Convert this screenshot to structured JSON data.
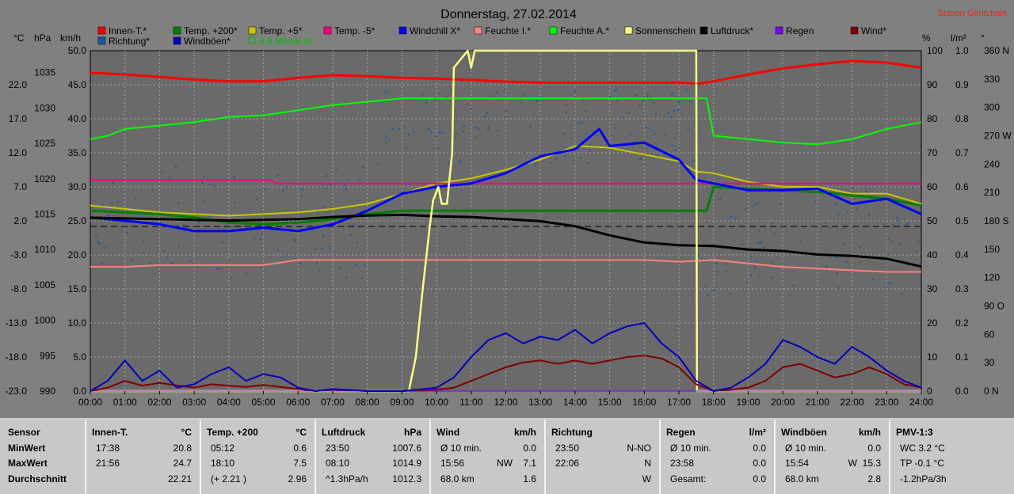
{
  "title": "Donnerstag, 27.02.2014",
  "station": "Station Göritzhain",
  "colors": {
    "background": "#808080",
    "plot_bg": "#6a6a6a",
    "innen": "#ff0000",
    "temp200": "#008000",
    "temp5": "#c8c800",
    "temp_m5": "#ff0080",
    "windchill": "#0000ff",
    "feuchte_i": "#ff8080",
    "feuchte_a": "#00ff00",
    "sonne": "#ffff80",
    "luftdruck": "#000000",
    "regen": "#8000ff",
    "wind": "#800000",
    "richtung": "#1a5aa0",
    "windboeen": "#0000c0"
  },
  "legend": [
    {
      "label": "Innen-T.*",
      "color": "#ff0000"
    },
    {
      "label": "Temp. +200*",
      "color": "#008000"
    },
    {
      "label": "Temp. +5*",
      "color": "#c8c800"
    },
    {
      "label": "Temp. -5*",
      "color": "#ff0080"
    },
    {
      "label": "Windchill X*",
      "color": "#0000ff"
    },
    {
      "label": "Feuchte I.*",
      "color": "#ff8080"
    },
    {
      "label": "Feuchte A.*",
      "color": "#00ff00"
    },
    {
      "label": "Sonnenschein",
      "color": "#ffff80"
    },
    {
      "label": "Luftdruck*",
      "color": "#000000"
    },
    {
      "label": "Regen",
      "color": "#8000ff"
    },
    {
      "label": "Wind*",
      "color": "#800000"
    },
    {
      "label": "Richtung*",
      "color": "#1a5aa0"
    },
    {
      "label": "Windböen*",
      "color": "#0000c0"
    },
    {
      "label": "0.8 Monat-Ø",
      "color": "#00c000"
    }
  ],
  "axis_units": {
    "temp": "°C",
    "hpa": "hPa",
    "kmh": "km/h",
    "pct": "%",
    "lm2": "l/m²",
    "deg": "°"
  },
  "chart_data": {
    "type": "line",
    "title": "Donnerstag, 27.02.2014",
    "x_ticks": [
      "00:00",
      "01:00",
      "02:00",
      "03:00",
      "04:00",
      "05:00",
      "06:00",
      "07:00",
      "08:00",
      "09:00",
      "10:00",
      "11:00",
      "12:00",
      "13:00",
      "14:00",
      "15:00",
      "16:00",
      "17:00",
      "18:00",
      "19:00",
      "20:00",
      "21:00",
      "22:00",
      "23:00",
      "24:00"
    ],
    "xlim": [
      0,
      24
    ],
    "axes": {
      "temp_c": {
        "ylim": [
          -23,
          27
        ],
        "ticks": [
          "22.0",
          "17.0",
          "12.0",
          "7.0",
          "2.0",
          "-3.0",
          "-8.0",
          "-13.0",
          "-18.0",
          "-23.0"
        ]
      },
      "hpa": {
        "ylim": [
          990,
          1038.1
        ],
        "ticks": [
          "1035",
          "1030",
          "1025",
          "1020",
          "1015",
          "1010",
          "1005",
          "1000",
          "995",
          "990"
        ]
      },
      "kmh": {
        "ylim": [
          0,
          50
        ],
        "ticks": [
          "50.0",
          "45.0",
          "40.0",
          "35.0",
          "30.0",
          "25.0",
          "20.0",
          "15.0",
          "10.0",
          "5.0",
          "0.0"
        ]
      },
      "pct": {
        "ylim": [
          0,
          100
        ],
        "ticks": [
          "100",
          "90",
          "80",
          "70",
          "60",
          "50",
          "40",
          "30",
          "20",
          "10",
          "0"
        ]
      },
      "lm2": {
        "ylim": [
          0,
          1.0
        ],
        "ticks": [
          "1.0",
          "0.9",
          "0.8",
          "0.7",
          "0.6",
          "0.5",
          "0.4",
          "0.3",
          "0.2",
          "0.1",
          "0.0"
        ]
      },
      "deg": {
        "ylim": [
          0,
          360
        ],
        "ticks": [
          "360 N",
          "330",
          "300",
          "270 W",
          "240",
          "210",
          "180 S",
          "150",
          "120",
          "90 O",
          "60",
          "30",
          "0 N"
        ]
      }
    },
    "series": [
      {
        "name": "Innen-T.*",
        "axis": "pct",
        "color": "#ff0000",
        "x": [
          0,
          1,
          2,
          3,
          4,
          5,
          6,
          7,
          8,
          9,
          10,
          11,
          12,
          13,
          14,
          15,
          16,
          17,
          17.6,
          18,
          19,
          20,
          21,
          22,
          23,
          24
        ],
        "y": [
          93.5,
          93,
          92.3,
          91.5,
          91,
          91,
          92,
          92.8,
          92.5,
          92,
          91.8,
          91.4,
          90.9,
          90.6,
          90.6,
          90.6,
          90.6,
          90.6,
          90.3,
          91,
          93,
          94.8,
          96,
          97,
          96.5,
          95
        ]
      },
      {
        "name": "Feuchte A.*",
        "axis": "pct",
        "color": "#00ff00",
        "x": [
          0,
          0.5,
          1,
          2,
          3,
          4,
          5,
          6,
          7,
          8,
          9,
          10,
          11,
          12,
          13,
          14,
          15,
          16,
          17,
          17.8,
          18,
          19,
          20,
          21,
          22,
          23,
          24
        ],
        "y": [
          74,
          75,
          77,
          78,
          79,
          80.5,
          81,
          82.5,
          84,
          85,
          86,
          86,
          86,
          86,
          86,
          86,
          86,
          86,
          86,
          86,
          75,
          74,
          73,
          72.5,
          74,
          77,
          79
        ]
      },
      {
        "name": "Temp. +5*",
        "axis": "pct",
        "color": "#c8c800",
        "x": [
          0,
          1,
          2,
          3,
          4,
          5,
          6,
          7,
          8,
          9,
          10,
          11,
          12,
          13,
          14,
          15,
          16,
          17,
          17.5,
          18,
          19,
          20,
          21,
          22,
          23,
          24
        ],
        "y": [
          54.5,
          53.5,
          52.5,
          52,
          51.5,
          52,
          52.5,
          53.5,
          55,
          58,
          61,
          62.5,
          65,
          68,
          72,
          71.5,
          69.5,
          67.5,
          64.5,
          64,
          61.5,
          60,
          60,
          58,
          58,
          55
        ]
      },
      {
        "name": "Temp. +200*",
        "axis": "pct",
        "color": "#008000",
        "x": [
          0,
          1,
          2,
          3,
          4,
          5,
          6,
          7,
          8,
          9,
          10,
          11,
          12,
          13,
          14,
          15,
          16,
          17,
          17.8,
          18,
          19,
          20,
          21,
          22,
          23,
          24
        ],
        "y": [
          53,
          52.5,
          52,
          51,
          49.5,
          49,
          49.5,
          50.5,
          52,
          53,
          53,
          53,
          53,
          53,
          53,
          53,
          53,
          53,
          53,
          60,
          59.5,
          59,
          58.5,
          57.5,
          56.5,
          54.5
        ]
      },
      {
        "name": "Temp. -5*",
        "axis": "pct",
        "color": "#ff0080",
        "x": [
          0,
          5.2,
          5.4,
          24
        ],
        "y": [
          62,
          62,
          61,
          61
        ]
      },
      {
        "name": "Windchill X*",
        "axis": "pct",
        "color": "#0000ff",
        "x": [
          0,
          1,
          2,
          3,
          4,
          5,
          6,
          7,
          8,
          9,
          10,
          11,
          12,
          13,
          14,
          14.7,
          15,
          16,
          17,
          17.5,
          18,
          19,
          20,
          21,
          22,
          23,
          24
        ],
        "y": [
          51,
          50,
          49,
          47,
          47,
          48,
          47,
          49,
          53,
          58,
          60,
          61,
          64,
          69,
          71,
          77,
          72,
          73,
          68,
          62,
          61,
          59,
          59,
          59.5,
          55,
          56.5,
          52
        ]
      },
      {
        "name": "Luftdruck*",
        "axis": "hpa",
        "color": "#000000",
        "x": [
          0,
          1,
          2,
          3,
          4,
          5,
          6,
          7,
          8,
          9,
          10,
          11,
          12,
          13,
          14,
          15,
          16,
          17,
          18,
          19,
          20,
          21,
          22,
          23,
          24
        ],
        "y": [
          1014.5,
          1014.4,
          1014.3,
          1014.2,
          1014.1,
          1014.2,
          1014.3,
          1014.6,
          1014.8,
          1014.9,
          1014.7,
          1014.6,
          1014.3,
          1014.0,
          1013.3,
          1012.0,
          1011.0,
          1010.6,
          1010.5,
          1010.0,
          1009.8,
          1009.3,
          1009.1,
          1008.7,
          1007.6
        ]
      },
      {
        "name": "Feuchte I.*",
        "axis": "pct",
        "color": "#ff8080",
        "x": [
          0,
          1,
          2,
          3,
          4,
          5,
          6,
          7,
          8,
          9,
          10,
          11,
          12,
          13,
          14,
          15,
          16,
          17,
          18,
          19,
          20,
          21,
          22,
          23,
          24
        ],
        "y": [
          36.5,
          36.5,
          37,
          37,
          37,
          37,
          38.5,
          38.5,
          38.5,
          38.5,
          38.5,
          38.5,
          38.5,
          38.5,
          38.5,
          38.5,
          38.5,
          38,
          38.5,
          37.5,
          36.5,
          36,
          35.5,
          35,
          35
        ]
      },
      {
        "name": "Sonnenschein",
        "axis": "pct",
        "color": "#ffff80",
        "x": [
          0,
          9.2,
          9.4,
          9.6,
          9.8,
          9.9,
          10.05,
          10.15,
          10.3,
          10.45,
          10.5,
          10.9,
          11.0,
          11.1,
          11.2,
          12,
          13,
          14,
          15,
          16,
          17,
          17.5,
          17.52,
          18,
          24
        ],
        "y": [
          0,
          0,
          10,
          30,
          48,
          56,
          60,
          55,
          55,
          70,
          95,
          100,
          95,
          100,
          100,
          100,
          100,
          100,
          100,
          100,
          100,
          100,
          0,
          0,
          0
        ]
      },
      {
        "name": "Regen",
        "axis": "lm2",
        "color": "#8000ff",
        "x": [
          0,
          24
        ],
        "y": [
          0,
          0
        ]
      },
      {
        "name": "Wind*",
        "axis": "kmh",
        "color": "#800000",
        "x": [
          0,
          0.5,
          1,
          1.5,
          2,
          3,
          3.5,
          4,
          4.5,
          5,
          6,
          6.5,
          7,
          8,
          9,
          10,
          10.5,
          11,
          11.5,
          12,
          12.5,
          13,
          13.5,
          14,
          14.5,
          15,
          15.5,
          16,
          16.5,
          17,
          17.5,
          18,
          18.5,
          19,
          19.5,
          20,
          20.5,
          21,
          21.5,
          22,
          22.5,
          23,
          23.5,
          24
        ],
        "y": [
          0,
          0.5,
          1.5,
          0.8,
          1.2,
          0.5,
          1.0,
          0.8,
          0.6,
          0.9,
          0.3,
          0,
          0.2,
          0,
          0,
          0.2,
          0.5,
          1.5,
          2.5,
          3.5,
          4.2,
          4.5,
          4.0,
          4.5,
          4.0,
          4.5,
          5.0,
          5.2,
          4.8,
          3.5,
          1.0,
          0,
          0.2,
          0.5,
          1.5,
          3.5,
          4.0,
          3.0,
          2.0,
          2.5,
          3.5,
          2.5,
          1.0,
          0.5
        ]
      },
      {
        "name": "Windböen*",
        "axis": "kmh",
        "color": "#0000c0",
        "x": [
          0,
          0.5,
          1,
          1.5,
          2,
          2.5,
          3,
          3.5,
          4,
          4.5,
          5,
          5.5,
          6,
          6.5,
          7,
          8,
          9,
          10,
          10.5,
          11,
          11.5,
          12,
          12.5,
          13,
          13.5,
          14,
          14.5,
          15,
          15.5,
          16,
          16.5,
          17,
          17.5,
          18,
          18.5,
          19,
          19.5,
          20,
          20.5,
          21,
          21.5,
          22,
          22.5,
          23,
          23.5,
          24
        ],
        "y": [
          0,
          1.5,
          4.5,
          1.5,
          3.0,
          0.5,
          1.0,
          2.5,
          3.5,
          1.5,
          2.5,
          2.0,
          0.5,
          0,
          0.3,
          0,
          0,
          0.5,
          2.0,
          5.0,
          7.5,
          8.5,
          7.0,
          8.0,
          7.5,
          9.0,
          7.0,
          8.5,
          9.5,
          10.0,
          7.0,
          5.0,
          1.5,
          0,
          0.5,
          2.0,
          4.0,
          7.5,
          6.5,
          5.0,
          4.0,
          6.5,
          5.0,
          3.0,
          1.5,
          0.5
        ]
      }
    ],
    "reference_lines": [
      {
        "axis": "hpa",
        "value": 1013.25,
        "style": "dashed",
        "color": "#000000"
      }
    ]
  },
  "table": {
    "row_labels": {
      "header": "Sensor",
      "min": "MinWert",
      "max": "MaxWert",
      "avg": "Durchschnitt"
    },
    "columns": [
      {
        "name": "Innen-T.",
        "unit": "°C",
        "rows": [
          [
            "17:38",
            "",
            "20.8"
          ],
          [
            "21:56",
            "",
            "24.7"
          ],
          [
            "",
            "",
            "22.21"
          ]
        ]
      },
      {
        "name": "Temp. +200",
        "unit": "°C",
        "rows": [
          [
            "05:12",
            "",
            "0.6"
          ],
          [
            "18:10",
            "",
            "7.5"
          ],
          [
            "(+ 2.21 )",
            "",
            "2.96"
          ]
        ]
      },
      {
        "name": "Luftdruck",
        "unit": "hPa",
        "rows": [
          [
            "23:50",
            "",
            "1007.6"
          ],
          [
            "08:10",
            "",
            "1014.9"
          ],
          [
            "^1.3hPa/h",
            "",
            "1012.3"
          ]
        ]
      },
      {
        "name": "Wind",
        "unit": "km/h",
        "rows": [
          [
            "Ø 10 min.",
            "",
            "0.0"
          ],
          [
            "15:56",
            "NW",
            "7.1"
          ],
          [
            "68.0 km",
            "",
            "1.6"
          ]
        ]
      },
      {
        "name": "Richtung",
        "unit": "",
        "rows": [
          [
            "23:50",
            "",
            "N-NO"
          ],
          [
            "22:06",
            "",
            "N"
          ],
          [
            "",
            "",
            "W"
          ]
        ]
      },
      {
        "name": "Regen",
        "unit": "l/m²",
        "rows": [
          [
            "Ø 10 min.",
            "",
            "0.0"
          ],
          [
            "23:58",
            "",
            "0.0"
          ],
          [
            "Gesamt:",
            "",
            "0.0"
          ]
        ]
      },
      {
        "name": "Windböen",
        "unit": "km/h",
        "rows": [
          [
            "Ø 10 min.",
            "",
            "0.0"
          ],
          [
            "15:54",
            "W",
            "15.3"
          ],
          [
            "68.0 km",
            "",
            "2.8"
          ]
        ]
      },
      {
        "name": "PMV-1:3",
        "unit": "",
        "rows": [
          [
            "WC 3.2 °C",
            "",
            ""
          ],
          [
            "TP -0.1 °C",
            "",
            ""
          ],
          [
            "-1.2hPa/3h",
            "",
            ""
          ]
        ]
      }
    ]
  }
}
